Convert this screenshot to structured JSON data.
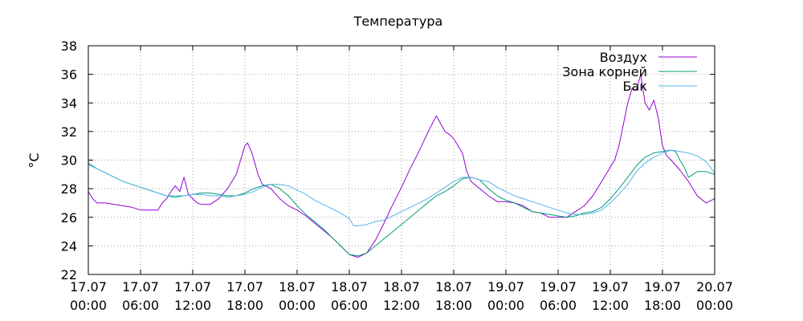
{
  "chart_data": {
    "type": "line",
    "title": "Температура",
    "ylabel": "°C",
    "xlabel": "",
    "ylim": [
      22,
      38
    ],
    "yticks": [
      22,
      24,
      26,
      28,
      30,
      32,
      34,
      36,
      38
    ],
    "xlim": [
      0,
      72
    ],
    "xtick_hours": [
      0,
      6,
      12,
      18,
      24,
      30,
      36,
      42,
      48,
      54,
      60,
      66,
      72
    ],
    "xtick_labels": [
      [
        "17.07",
        "00:00"
      ],
      [
        "17.07",
        "06:00"
      ],
      [
        "17.07",
        "12:00"
      ],
      [
        "17.07",
        "18:00"
      ],
      [
        "18.07",
        "00:00"
      ],
      [
        "18.07",
        "06:00"
      ],
      [
        "18.07",
        "12:00"
      ],
      [
        "18.07",
        "18:00"
      ],
      [
        "19.07",
        "00:00"
      ],
      [
        "19.07",
        "06:00"
      ],
      [
        "19.07",
        "12:00"
      ],
      [
        "19.07",
        "18:00"
      ],
      [
        "20.07",
        "00:00"
      ]
    ],
    "x_unit": "hours from 17.07 00:00",
    "grid": true,
    "legend_position": "top-right",
    "series": [
      {
        "name": "Воздух",
        "color": "#9400d3",
        "x": [
          0,
          0.5,
          1,
          2,
          3,
          4,
          5,
          6,
          7,
          8,
          8.5,
          9,
          9.5,
          10,
          10.5,
          11,
          11.5,
          12,
          12.5,
          13,
          14,
          15,
          16,
          17,
          17.5,
          18,
          18.3,
          18.8,
          19.5,
          20,
          21,
          22,
          23,
          24,
          25,
          26,
          27,
          28,
          29,
          30,
          31,
          32,
          33,
          34,
          35,
          36,
          37,
          38,
          39,
          40,
          41,
          41.5,
          42,
          42.5,
          43,
          43.5,
          44,
          45,
          46,
          47,
          48,
          49,
          50,
          51,
          52,
          53,
          54,
          55,
          56,
          57,
          58,
          59,
          60,
          60.5,
          61,
          61.5,
          62,
          62.5,
          63,
          63.5,
          64,
          64.5,
          65,
          65.5,
          66,
          66.5,
          67,
          68,
          69,
          70,
          71,
          72
        ],
        "values": [
          27.8,
          27.3,
          27.0,
          27.0,
          26.9,
          26.8,
          26.7,
          26.5,
          26.5,
          26.5,
          27.0,
          27.3,
          27.8,
          28.2,
          27.8,
          28.8,
          27.6,
          27.3,
          27.0,
          26.9,
          26.9,
          27.3,
          28.0,
          29.0,
          30.0,
          31.0,
          31.2,
          30.5,
          29.0,
          28.3,
          28.0,
          27.3,
          26.8,
          26.5,
          26.1,
          25.6,
          25.1,
          24.6,
          24.0,
          23.4,
          23.2,
          23.5,
          24.4,
          25.6,
          26.9,
          28.1,
          29.4,
          30.6,
          31.9,
          33.1,
          32.0,
          31.8,
          31.5,
          31.0,
          30.5,
          29.2,
          28.5,
          28.0,
          27.5,
          27.1,
          27.1,
          27.0,
          26.8,
          26.4,
          26.3,
          26.0,
          26.0,
          26.0,
          26.4,
          26.8,
          27.5,
          28.5,
          29.5,
          30.0,
          31.0,
          32.5,
          34.0,
          35.0,
          34.9,
          36.0,
          34.0,
          33.5,
          34.2,
          33.0,
          31.0,
          30.3,
          30.0,
          29.3,
          28.5,
          27.5,
          27.0,
          27.3
        ]
      },
      {
        "name": "Зона корней",
        "color": "#009e73",
        "x": [
          0,
          1,
          2,
          3,
          4,
          5,
          6,
          7,
          8,
          9,
          10,
          11,
          12,
          13,
          14,
          15,
          16,
          17,
          18,
          19,
          20,
          21,
          22,
          23,
          24,
          25,
          26,
          27,
          28,
          29,
          30,
          31,
          32,
          33,
          34,
          35,
          36,
          37,
          38,
          39,
          40,
          41,
          42,
          43,
          44,
          45,
          46,
          47,
          48,
          49,
          50,
          51,
          52,
          53,
          54,
          55,
          56,
          57,
          58,
          59,
          60,
          61,
          62,
          63,
          64,
          65,
          66,
          67,
          67.5,
          68,
          68.5,
          69,
          70,
          71,
          72
        ],
        "values": [
          29.7,
          29.4,
          29.1,
          28.8,
          28.5,
          28.3,
          28.1,
          27.9,
          27.7,
          27.5,
          27.4,
          27.5,
          27.6,
          27.7,
          27.7,
          27.6,
          27.5,
          27.5,
          27.7,
          28.0,
          28.2,
          28.3,
          28.0,
          27.5,
          26.8,
          26.2,
          25.7,
          25.2,
          24.6,
          24.0,
          23.4,
          23.3,
          23.5,
          24.0,
          24.5,
          25.0,
          25.5,
          26.0,
          26.5,
          27.0,
          27.5,
          27.8,
          28.2,
          28.7,
          28.8,
          28.6,
          28.0,
          27.5,
          27.2,
          27.0,
          26.7,
          26.4,
          26.3,
          26.2,
          26.1,
          26.0,
          26.1,
          26.3,
          26.4,
          26.7,
          27.3,
          28.0,
          28.8,
          29.6,
          30.2,
          30.5,
          30.6,
          30.7,
          30.6,
          30.0,
          29.5,
          28.8,
          29.2,
          29.2,
          29.0
        ]
      },
      {
        "name": "Бак",
        "color": "#56b4e9",
        "x": [
          0,
          1,
          2,
          3,
          4,
          5,
          6,
          7,
          8,
          9,
          10,
          11,
          12,
          13,
          14,
          15,
          16,
          17,
          18,
          19,
          20,
          21,
          22,
          23,
          24,
          25,
          26,
          27,
          28,
          29,
          30,
          30.5,
          31,
          32,
          33,
          34,
          35,
          36,
          37,
          38,
          39,
          40,
          41,
          42,
          43,
          44,
          45,
          46,
          47,
          48,
          49,
          50,
          51,
          52,
          53,
          54,
          55,
          56,
          57,
          58,
          59,
          60,
          61,
          62,
          63,
          64,
          65,
          66,
          67,
          68,
          69,
          70,
          71,
          72
        ],
        "values": [
          29.8,
          29.4,
          29.1,
          28.8,
          28.5,
          28.3,
          28.1,
          27.9,
          27.7,
          27.5,
          27.5,
          27.5,
          27.6,
          27.6,
          27.5,
          27.5,
          27.4,
          27.5,
          27.6,
          27.8,
          28.1,
          28.3,
          28.3,
          28.2,
          27.9,
          27.6,
          27.2,
          26.9,
          26.6,
          26.3,
          25.9,
          25.4,
          25.4,
          25.5,
          25.7,
          25.8,
          26.1,
          26.4,
          26.7,
          27.0,
          27.3,
          27.7,
          28.1,
          28.5,
          28.8,
          28.8,
          28.6,
          28.5,
          28.1,
          27.8,
          27.5,
          27.3,
          27.1,
          26.9,
          26.7,
          26.5,
          26.3,
          26.2,
          26.2,
          26.3,
          26.5,
          27.0,
          27.6,
          28.3,
          29.2,
          29.8,
          30.2,
          30.5,
          30.7,
          30.6,
          30.5,
          30.3,
          29.9,
          29.1
        ]
      }
    ]
  }
}
